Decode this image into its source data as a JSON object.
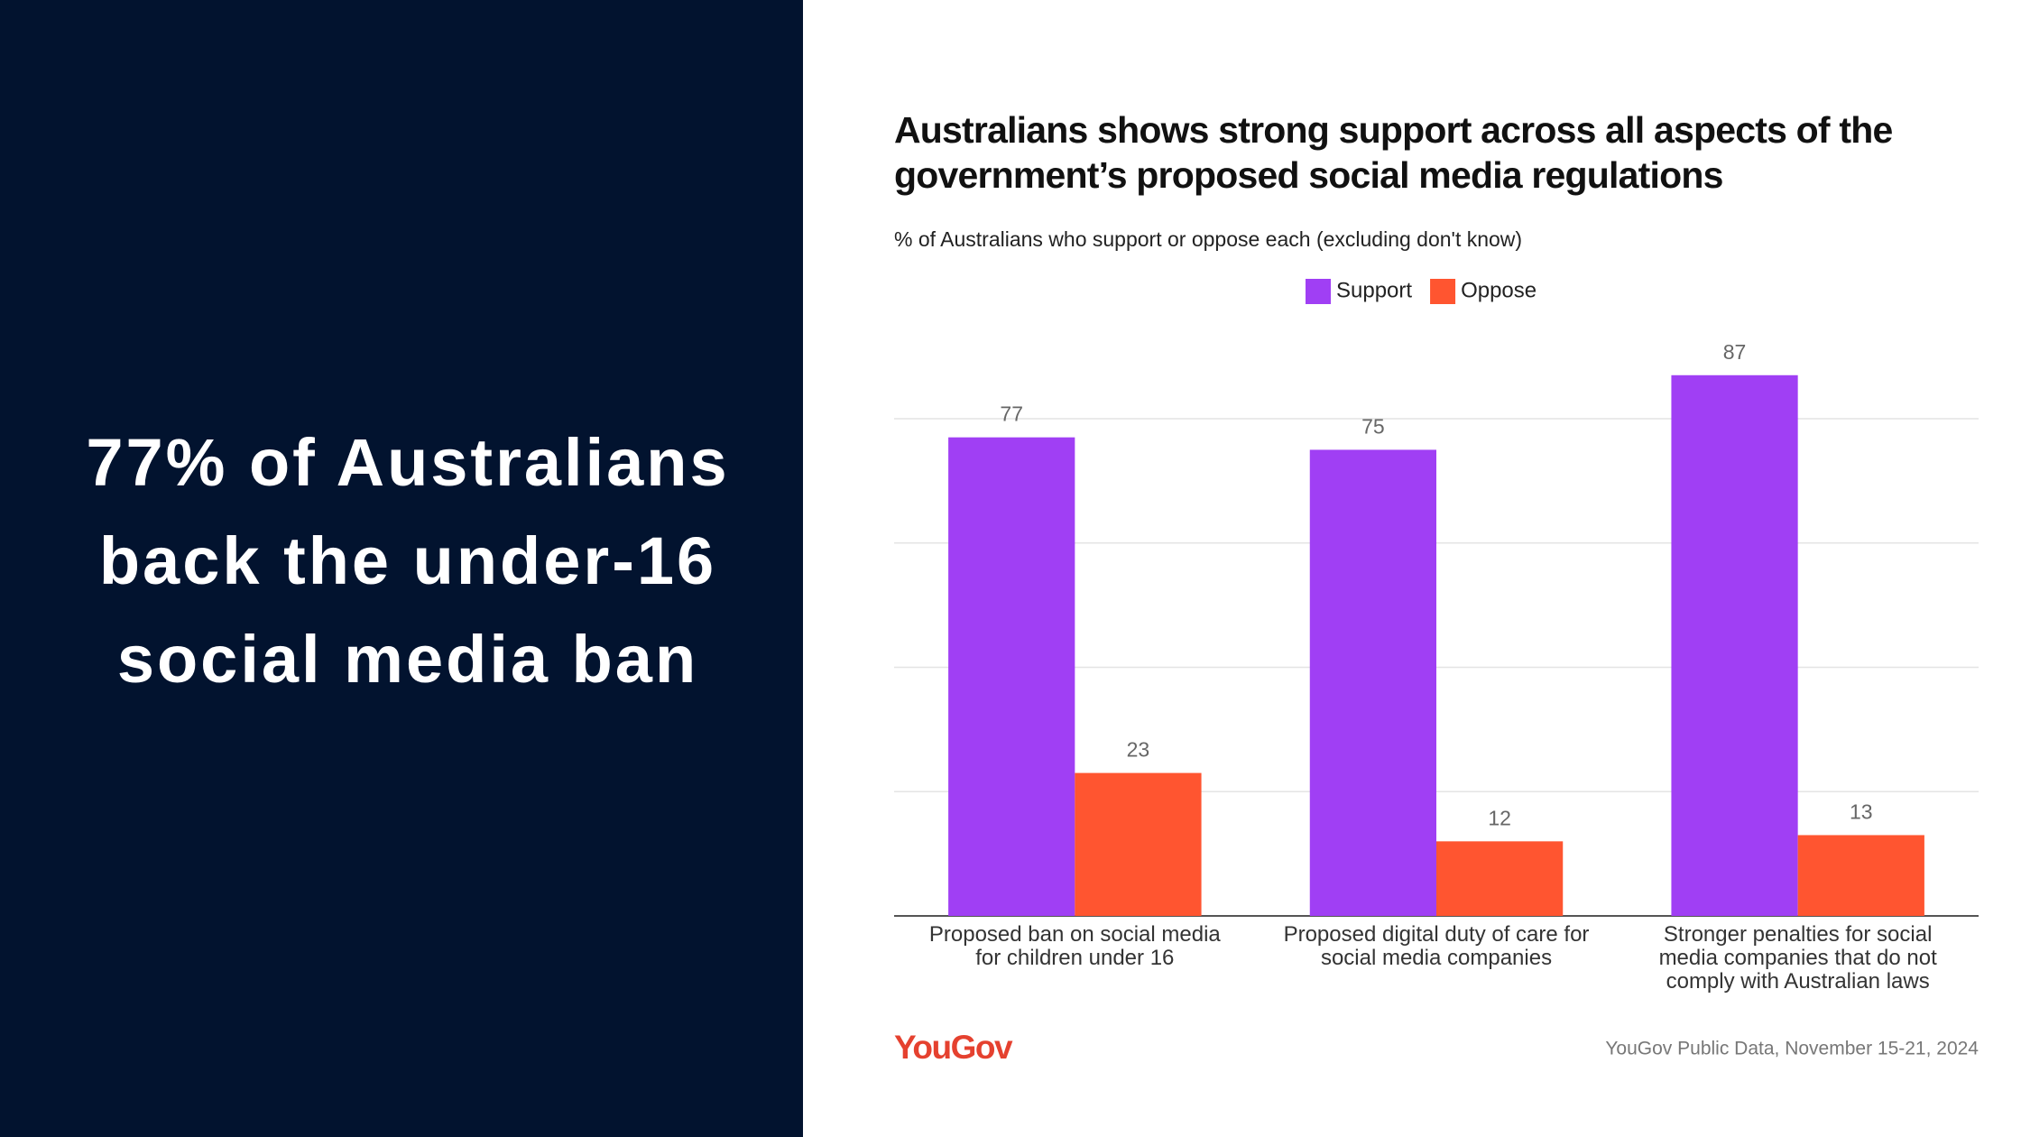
{
  "headline": "77% of Australians back the under-16 social media ban",
  "chart_data": {
    "type": "bar",
    "title": "Australians shows strong support across all aspects of the government’s proposed social media regulations",
    "subtitle": "% of Australians who support or oppose each (excluding don't know)",
    "categories": [
      "Proposed ban on social media for children under 16",
      "Proposed digital duty of care for social media companies",
      "Stronger penalties for social media companies that do not comply with Australian laws"
    ],
    "series": [
      {
        "name": "Support",
        "color": "#a03ff4",
        "values": [
          77,
          75,
          87
        ]
      },
      {
        "name": "Oppose",
        "color": "#ff5530",
        "values": [
          23,
          12,
          13
        ]
      }
    ],
    "ylim": [
      0,
      80
    ],
    "yticks": [
      0,
      20,
      40,
      60,
      80
    ],
    "grid": true,
    "legend": "top",
    "logo": "YouGov",
    "source": "YouGov Public Data, November 15-21, 2024"
  }
}
